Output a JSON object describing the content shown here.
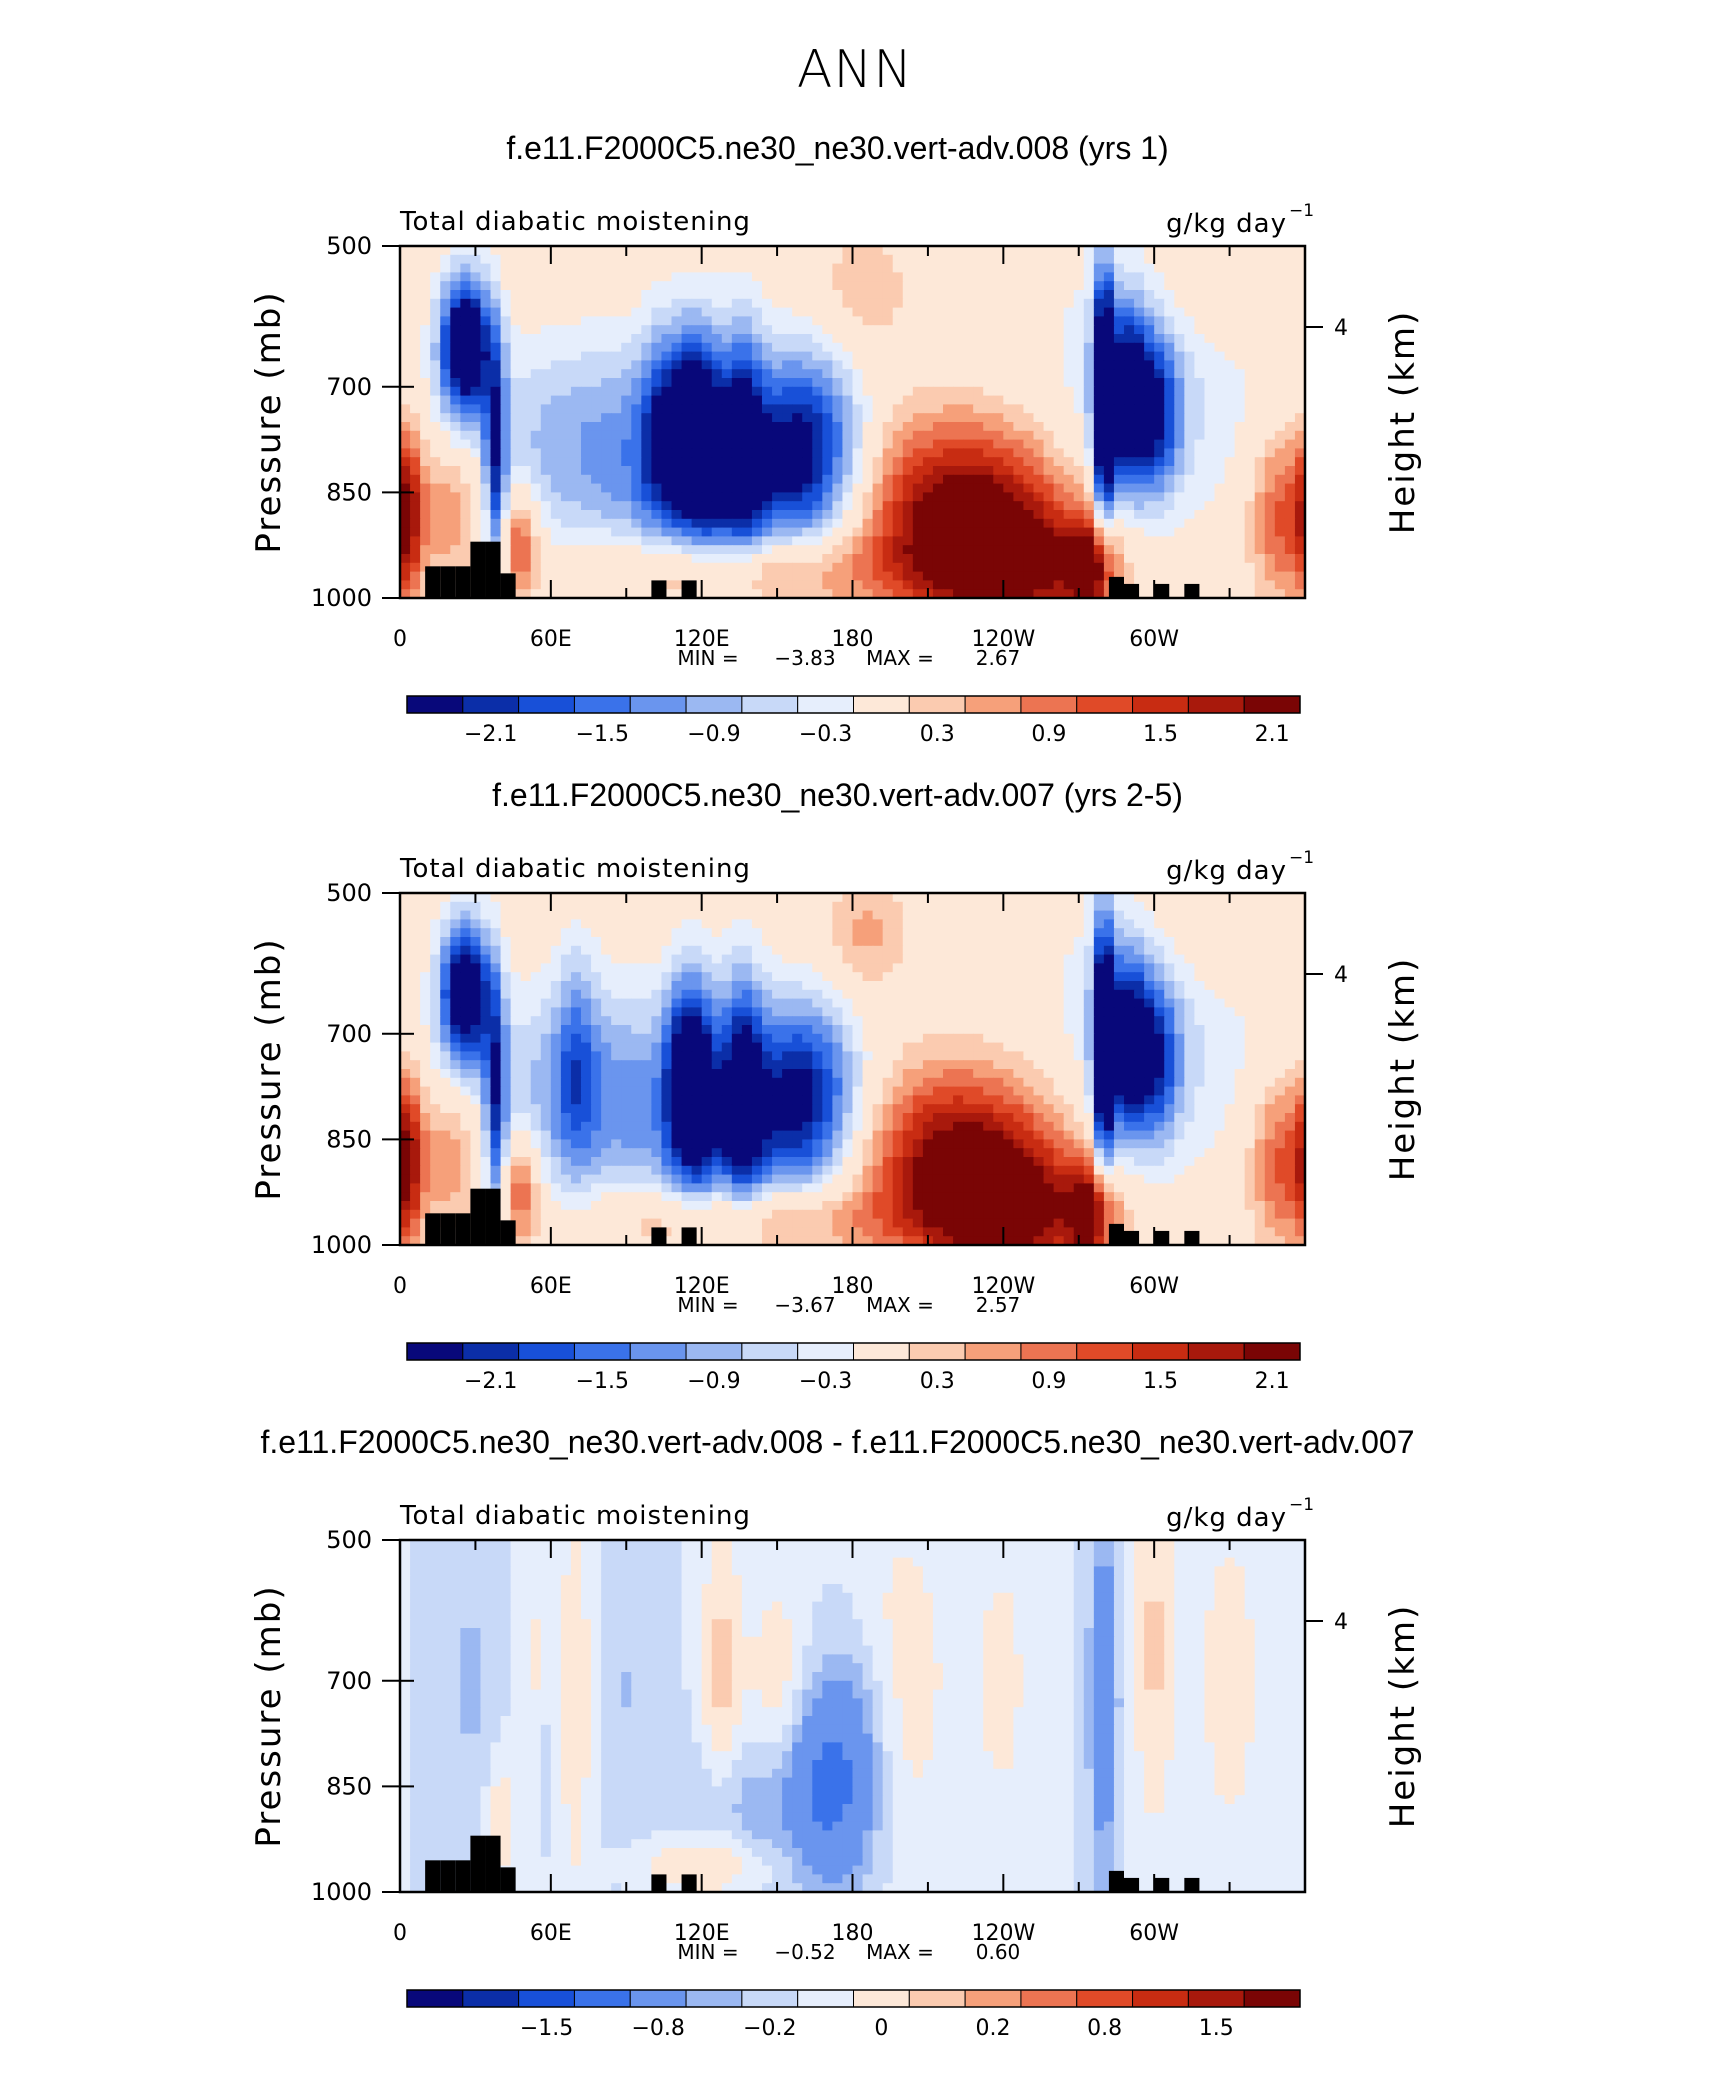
{
  "page": {
    "title": "ANN"
  },
  "colorbars": {
    "main": {
      "colors": [
        "#08087a",
        "#0b2ea8",
        "#1850d8",
        "#3a72ea",
        "#6a95ee",
        "#9bb8f2",
        "#c8d9f8",
        "#e6eefc",
        "#fde8d8",
        "#fbcbb0",
        "#f6a07a",
        "#ec7452",
        "#e04a28",
        "#c82c12",
        "#a8190c",
        "#7a0505"
      ],
      "labels": [
        "-2.1",
        "-1.5",
        "-0.9",
        "-0.3",
        "0.3",
        "0.9",
        "1.5",
        "2.1"
      ]
    },
    "diff": {
      "colors": [
        "#08087a",
        "#0b2ea8",
        "#1850d8",
        "#3a72ea",
        "#6a95ee",
        "#9bb8f2",
        "#c8d9f8",
        "#e6eefc",
        "#fde8d8",
        "#fbcbb0",
        "#f6a07a",
        "#ec7452",
        "#e04a28",
        "#c82c12",
        "#a8190c",
        "#7a0505"
      ],
      "labels": [
        "-1.5",
        "-0.8",
        "-0.2",
        "0",
        "0.2",
        "0.8",
        "1.5"
      ]
    }
  },
  "chart_data": [
    {
      "type": "heatmap",
      "title": "f.e11.F2000C5.ne30_ne30.vert-adv.008 (yrs 1)",
      "subtitle_left": "Total diabatic moistening",
      "units": "g/kg day",
      "units_exp": "−1",
      "ylabel": "Pressure (mb)",
      "ylabel_right": "Height (km)",
      "y_ticks": [
        "500",
        "700",
        "850",
        "1000"
      ],
      "y_right_ticks": [
        "4"
      ],
      "x_ticks": [
        "0",
        "60E",
        "120E",
        "180",
        "120W",
        "60W"
      ],
      "xlim": [
        0,
        360
      ],
      "ylim": [
        1000,
        500
      ],
      "min_label": "MIN =",
      "min_value": "−3.83",
      "max_label": "MAX =",
      "max_value": "2.67",
      "min": -3.83,
      "max": 2.67,
      "features": [
        {
          "lon": 26,
          "p": 640,
          "amp": -3.4,
          "wlon": 7,
          "wp": 70
        },
        {
          "lon": 38,
          "p": 800,
          "amp": -2.0,
          "wlon": 3,
          "wp": 120
        },
        {
          "lon": 20,
          "p": 870,
          "amp": 1.0,
          "wlon": 10,
          "wp": 70
        },
        {
          "lon": 3,
          "p": 880,
          "amp": 1.6,
          "wlon": 4,
          "wp": 90
        },
        {
          "lon": 48,
          "p": 920,
          "amp": 1.4,
          "wlon": 5,
          "wp": 55
        },
        {
          "lon": 85,
          "p": 770,
          "amp": -1.2,
          "wlon": 40,
          "wp": 100
        },
        {
          "lon": 105,
          "p": 760,
          "amp": -1.6,
          "wlon": 7,
          "wp": 100
        },
        {
          "lon": 115,
          "p": 760,
          "amp": -1.8,
          "wlon": 5,
          "wp": 100
        },
        {
          "lon": 123,
          "p": 780,
          "amp": -1.8,
          "wlon": 5,
          "wp": 110
        },
        {
          "lon": 136,
          "p": 780,
          "amp": -2.0,
          "wlon": 6,
          "wp": 120
        },
        {
          "lon": 160,
          "p": 780,
          "amp": -2.4,
          "wlon": 16,
          "wp": 90
        },
        {
          "lon": 140,
          "p": 880,
          "amp": -0.8,
          "wlon": 45,
          "wp": 70
        },
        {
          "lon": 135,
          "p": 960,
          "amp": 1.2,
          "wlon": 40,
          "wp": 40
        },
        {
          "lon": 222,
          "p": 880,
          "amp": 2.6,
          "wlon": 30,
          "wp": 90
        },
        {
          "lon": 245,
          "p": 960,
          "amp": 1.8,
          "wlon": 25,
          "wp": 60
        },
        {
          "lon": 185,
          "p": 560,
          "amp": 0.6,
          "wlon": 12,
          "wp": 60
        },
        {
          "lon": 280,
          "p": 720,
          "amp": -3.6,
          "wlon": 3,
          "wp": 130
        },
        {
          "lon": 290,
          "p": 720,
          "amp": -2.8,
          "wlon": 6,
          "wp": 90
        },
        {
          "lon": 302,
          "p": 740,
          "amp": -1.6,
          "wlon": 6,
          "wp": 80
        },
        {
          "lon": 300,
          "p": 700,
          "amp": -0.8,
          "wlon": 30,
          "wp": 140
        },
        {
          "lon": 275,
          "p": 960,
          "amp": 2.0,
          "wlon": 6,
          "wp": 50
        },
        {
          "lon": 352,
          "p": 880,
          "amp": 1.4,
          "wlon": 10,
          "wp": 90
        },
        {
          "lon": 320,
          "p": 560,
          "amp": 0.4,
          "wlon": 20,
          "wp": 80
        }
      ],
      "orography": [
        [
          10,
          955
        ],
        [
          16,
          955
        ],
        [
          22,
          955
        ],
        [
          28,
          920
        ],
        [
          34,
          920
        ],
        [
          40,
          965
        ],
        [
          100,
          975
        ],
        [
          112,
          975
        ],
        [
          282,
          970
        ],
        [
          288,
          980
        ],
        [
          300,
          980
        ],
        [
          312,
          980
        ]
      ]
    },
    {
      "type": "heatmap",
      "title": "f.e11.F2000C5.ne30_ne30.vert-adv.007 (yrs 2-5)",
      "subtitle_left": "Total diabatic moistening",
      "units": "g/kg day",
      "units_exp": "−1",
      "ylabel": "Pressure (mb)",
      "ylabel_right": "Height (km)",
      "y_ticks": [
        "500",
        "700",
        "850",
        "1000"
      ],
      "y_right_ticks": [
        "4"
      ],
      "x_ticks": [
        "0",
        "60E",
        "120E",
        "180",
        "120W",
        "60W"
      ],
      "xlim": [
        0,
        360
      ],
      "ylim": [
        1000,
        500
      ],
      "min_label": "MIN =",
      "min_value": "−3.67",
      "max_label": "MAX =",
      "max_value": "2.57",
      "min": -3.67,
      "max": 2.57,
      "features": [
        {
          "lon": 26,
          "p": 640,
          "amp": -3.2,
          "wlon": 7,
          "wp": 70
        },
        {
          "lon": 38,
          "p": 800,
          "amp": -1.9,
          "wlon": 3,
          "wp": 120
        },
        {
          "lon": 20,
          "p": 870,
          "amp": 1.0,
          "wlon": 10,
          "wp": 70
        },
        {
          "lon": 3,
          "p": 880,
          "amp": 1.6,
          "wlon": 4,
          "wp": 90
        },
        {
          "lon": 48,
          "p": 920,
          "amp": 1.3,
          "wlon": 5,
          "wp": 55
        },
        {
          "lon": 70,
          "p": 740,
          "amp": -1.0,
          "wlon": 6,
          "wp": 120
        },
        {
          "lon": 85,
          "p": 770,
          "amp": -1.2,
          "wlon": 40,
          "wp": 100
        },
        {
          "lon": 112,
          "p": 760,
          "amp": -1.9,
          "wlon": 5,
          "wp": 100
        },
        {
          "lon": 120,
          "p": 780,
          "amp": -1.8,
          "wlon": 5,
          "wp": 110
        },
        {
          "lon": 136,
          "p": 780,
          "amp": -2.0,
          "wlon": 6,
          "wp": 120
        },
        {
          "lon": 160,
          "p": 780,
          "amp": -2.3,
          "wlon": 16,
          "wp": 90
        },
        {
          "lon": 140,
          "p": 880,
          "amp": -0.8,
          "wlon": 45,
          "wp": 70
        },
        {
          "lon": 135,
          "p": 960,
          "amp": 1.1,
          "wlon": 40,
          "wp": 40
        },
        {
          "lon": 222,
          "p": 880,
          "amp": 2.5,
          "wlon": 30,
          "wp": 90
        },
        {
          "lon": 245,
          "p": 960,
          "amp": 1.7,
          "wlon": 25,
          "wp": 60
        },
        {
          "lon": 185,
          "p": 560,
          "amp": 0.7,
          "wlon": 12,
          "wp": 60
        },
        {
          "lon": 280,
          "p": 720,
          "amp": -3.4,
          "wlon": 3,
          "wp": 130
        },
        {
          "lon": 290,
          "p": 720,
          "amp": -2.6,
          "wlon": 6,
          "wp": 90
        },
        {
          "lon": 302,
          "p": 740,
          "amp": -1.5,
          "wlon": 6,
          "wp": 80
        },
        {
          "lon": 300,
          "p": 700,
          "amp": -0.8,
          "wlon": 30,
          "wp": 140
        },
        {
          "lon": 275,
          "p": 960,
          "amp": 1.9,
          "wlon": 6,
          "wp": 50
        },
        {
          "lon": 352,
          "p": 880,
          "amp": 1.4,
          "wlon": 10,
          "wp": 90
        },
        {
          "lon": 320,
          "p": 560,
          "amp": 0.4,
          "wlon": 20,
          "wp": 80
        }
      ],
      "orography": [
        [
          10,
          955
        ],
        [
          16,
          955
        ],
        [
          22,
          955
        ],
        [
          28,
          920
        ],
        [
          34,
          920
        ],
        [
          40,
          965
        ],
        [
          100,
          975
        ],
        [
          112,
          975
        ],
        [
          282,
          970
        ],
        [
          288,
          980
        ],
        [
          300,
          980
        ],
        [
          312,
          980
        ]
      ]
    },
    {
      "type": "heatmap",
      "title": "f.e11.F2000C5.ne30_ne30.vert-adv.008 - f.e11.F2000C5.ne30_ne30.vert-adv.007",
      "subtitle_left": "Total diabatic moistening",
      "units": "g/kg day",
      "units_exp": "−1",
      "ylabel": "Pressure (mb)",
      "ylabel_right": "Height (km)",
      "y_ticks": [
        "500",
        "700",
        "850",
        "1000"
      ],
      "y_right_ticks": [
        "4"
      ],
      "x_ticks": [
        "0",
        "60E",
        "120E",
        "180",
        "120W",
        "60W"
      ],
      "xlim": [
        0,
        360
      ],
      "ylim": [
        1000,
        500
      ],
      "min_label": "MIN =",
      "min_value": "−0.52",
      "max_label": "MAX =",
      "max_value": "0.60",
      "min": -0.52,
      "max": 0.6,
      "features": [
        {
          "lon": 55,
          "p": 720,
          "amp": 0.12,
          "wlon": 4,
          "wp": 200
        },
        {
          "lon": 58,
          "p": 840,
          "amp": -0.15,
          "wlon": 3,
          "wp": 80
        },
        {
          "lon": 70,
          "p": 720,
          "amp": 0.2,
          "wlon": 5,
          "wp": 200
        },
        {
          "lon": 128,
          "p": 700,
          "amp": 0.25,
          "wlon": 6,
          "wp": 150
        },
        {
          "lon": 150,
          "p": 720,
          "amp": 0.18,
          "wlon": 8,
          "wp": 120
        },
        {
          "lon": 168,
          "p": 850,
          "amp": -0.4,
          "wlon": 10,
          "wp": 90
        },
        {
          "lon": 180,
          "p": 820,
          "amp": -0.3,
          "wlon": 10,
          "wp": 120
        },
        {
          "lon": 140,
          "p": 880,
          "amp": -0.2,
          "wlon": 20,
          "wp": 80
        },
        {
          "lon": 120,
          "p": 960,
          "amp": 0.25,
          "wlon": 20,
          "wp": 30
        },
        {
          "lon": 200,
          "p": 700,
          "amp": 0.15,
          "wlon": 15,
          "wp": 200
        },
        {
          "lon": 240,
          "p": 700,
          "amp": 0.12,
          "wlon": 10,
          "wp": 200
        },
        {
          "lon": 280,
          "p": 720,
          "amp": -0.35,
          "wlon": 4,
          "wp": 200
        },
        {
          "lon": 300,
          "p": 650,
          "amp": 0.22,
          "wlon": 6,
          "wp": 200
        },
        {
          "lon": 330,
          "p": 700,
          "amp": 0.2,
          "wlon": 8,
          "wp": 150
        },
        {
          "lon": 28,
          "p": 700,
          "amp": -0.12,
          "wlon": 6,
          "wp": 150
        },
        {
          "lon": 90,
          "p": 700,
          "amp": -0.1,
          "wlon": 10,
          "wp": 200
        },
        {
          "lon": 40,
          "p": 900,
          "amp": 0.2,
          "wlon": 4,
          "wp": 60
        }
      ],
      "orography": [
        [
          10,
          955
        ],
        [
          16,
          955
        ],
        [
          22,
          955
        ],
        [
          28,
          920
        ],
        [
          34,
          920
        ],
        [
          40,
          965
        ],
        [
          100,
          975
        ],
        [
          112,
          975
        ],
        [
          282,
          970
        ],
        [
          288,
          980
        ],
        [
          300,
          980
        ],
        [
          312,
          980
        ]
      ]
    }
  ]
}
